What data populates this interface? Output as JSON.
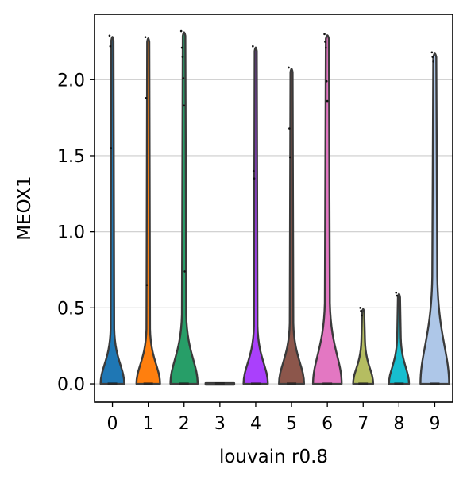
{
  "chart_data": {
    "type": "violin",
    "title": "",
    "xlabel": "louvain r0.8",
    "ylabel": "MEOX1",
    "ylim": [
      -0.12,
      2.43
    ],
    "yticks": [
      0.0,
      0.5,
      1.0,
      1.5,
      2.0
    ],
    "ytick_labels": [
      "0.0",
      "0.5",
      "1.0",
      "1.5",
      "2.0"
    ],
    "grid": "horizontal",
    "legend": "none",
    "categories": [
      "0",
      "1",
      "2",
      "3",
      "4",
      "5",
      "6",
      "7",
      "8",
      "9"
    ],
    "colors": [
      "#1f77b4",
      "#ff7f0e",
      "#279e68",
      "#d62728",
      "#aa40fc",
      "#8c564b",
      "#e377c2",
      "#b5bd61",
      "#17becf",
      "#aec7e8"
    ],
    "violins": [
      {
        "category": "0",
        "max": 2.29,
        "bulb_height": 0.07,
        "bulb_halfwidth": 0.33,
        "neck_halfwidth": 0.05,
        "outliers": [
          2.29,
          2.22,
          1.55
        ]
      },
      {
        "category": "1",
        "max": 2.28,
        "bulb_height": 0.07,
        "bulb_halfwidth": 0.33,
        "neck_halfwidth": 0.05,
        "outliers": [
          2.28,
          1.88,
          0.65
        ]
      },
      {
        "category": "2",
        "max": 2.32,
        "bulb_height": 0.12,
        "bulb_halfwidth": 0.38,
        "neck_halfwidth": 0.06,
        "outliers": [
          2.32,
          2.21,
          2.15,
          2.01,
          1.83,
          0.74
        ]
      },
      {
        "category": "3",
        "max": 0.0,
        "bulb_height": 0.0,
        "bulb_halfwidth": 0.4,
        "neck_halfwidth": 0.0,
        "outliers": []
      },
      {
        "category": "4",
        "max": 2.22,
        "bulb_height": 0.08,
        "bulb_halfwidth": 0.34,
        "neck_halfwidth": 0.05,
        "outliers": [
          2.22,
          1.4,
          1.35
        ]
      },
      {
        "category": "5",
        "max": 2.08,
        "bulb_height": 0.09,
        "bulb_halfwidth": 0.35,
        "neck_halfwidth": 0.05,
        "outliers": [
          2.08,
          1.68,
          1.49
        ]
      },
      {
        "category": "6",
        "max": 2.3,
        "bulb_height": 0.16,
        "bulb_halfwidth": 0.4,
        "neck_halfwidth": 0.07,
        "outliers": [
          2.3,
          2.25,
          2.21,
          1.99,
          1.86
        ]
      },
      {
        "category": "7",
        "max": 0.5,
        "bulb_height": 0.03,
        "bulb_halfwidth": 0.28,
        "neck_halfwidth": 0.05,
        "outliers": [
          0.5,
          0.48,
          0.45
        ]
      },
      {
        "category": "8",
        "max": 0.6,
        "bulb_height": 0.04,
        "bulb_halfwidth": 0.28,
        "neck_halfwidth": 0.05,
        "outliers": [
          0.6,
          0.58
        ]
      },
      {
        "category": "9",
        "max": 2.18,
        "bulb_height": 0.25,
        "bulb_halfwidth": 0.4,
        "neck_halfwidth": 0.07,
        "outliers": [
          2.18,
          2.15,
          2.12
        ]
      }
    ]
  }
}
